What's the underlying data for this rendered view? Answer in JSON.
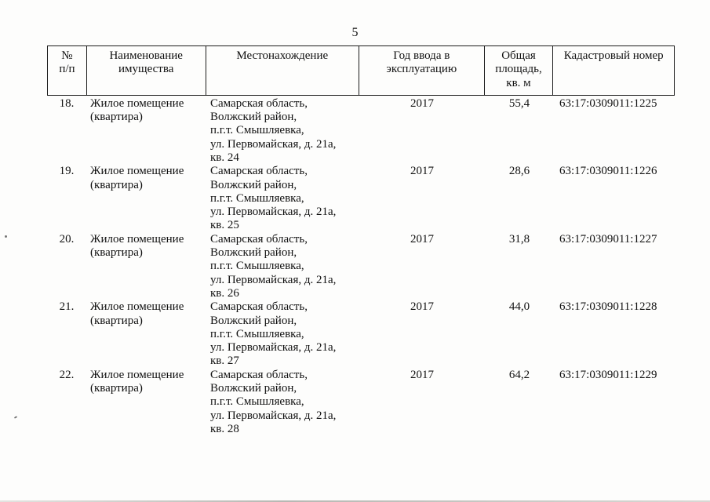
{
  "page": {
    "number": "5"
  },
  "table": {
    "headers": {
      "num": "№\nп/п",
      "name": "Наименование\nимущества",
      "location": "Местонахождение",
      "year": "Год ввода в\nэксплуатацию",
      "area": "Общая\nплощадь,\nкв. м",
      "cadastre": "Кадастровый номер"
    },
    "rows": [
      {
        "num": "18.",
        "name": "Жилое помещение\n(квартира)",
        "location": "Самарская область,\nВолжский район,\nп.г.т. Смышляевка,\nул. Первомайская, д. 21а,\nкв. 24",
        "year": "2017",
        "area": "55,4",
        "cadastre": "63:17:0309011:1225"
      },
      {
        "num": "19.",
        "name": "Жилое помещение\n(квартира)",
        "location": "Самарская область,\nВолжский район,\nп.г.т. Смышляевка,\nул. Первомайская, д. 21а,\nкв. 25",
        "year": "2017",
        "area": "28,6",
        "cadastre": "63:17:0309011:1226"
      },
      {
        "num": "20.",
        "name": "Жилое помещение\n(квартира)",
        "location": "Самарская область,\nВолжский район,\nп.г.т. Смышляевка,\nул. Первомайская, д. 21а,\nкв. 26",
        "year": "2017",
        "area": "31,8",
        "cadastre": "63:17:0309011:1227"
      },
      {
        "num": "21.",
        "name": "Жилое помещение\n(квартира)",
        "location": "Самарская область,\nВолжский район,\nп.г.т. Смышляевка,\nул. Первомайская, д. 21а,\nкв. 27",
        "year": "2017",
        "area": "44,0",
        "cadastre": "63:17:0309011:1228"
      },
      {
        "num": "22.",
        "name": "Жилое помещение\n(квартира)",
        "location": "Самарская область,\nВолжский район,\nп.г.т. Смышляевка,\nул. Первомайская, д. 21а,\nкв. 28",
        "year": "2017",
        "area": "64,2",
        "cadastre": "63:17:0309011:1229"
      }
    ]
  }
}
